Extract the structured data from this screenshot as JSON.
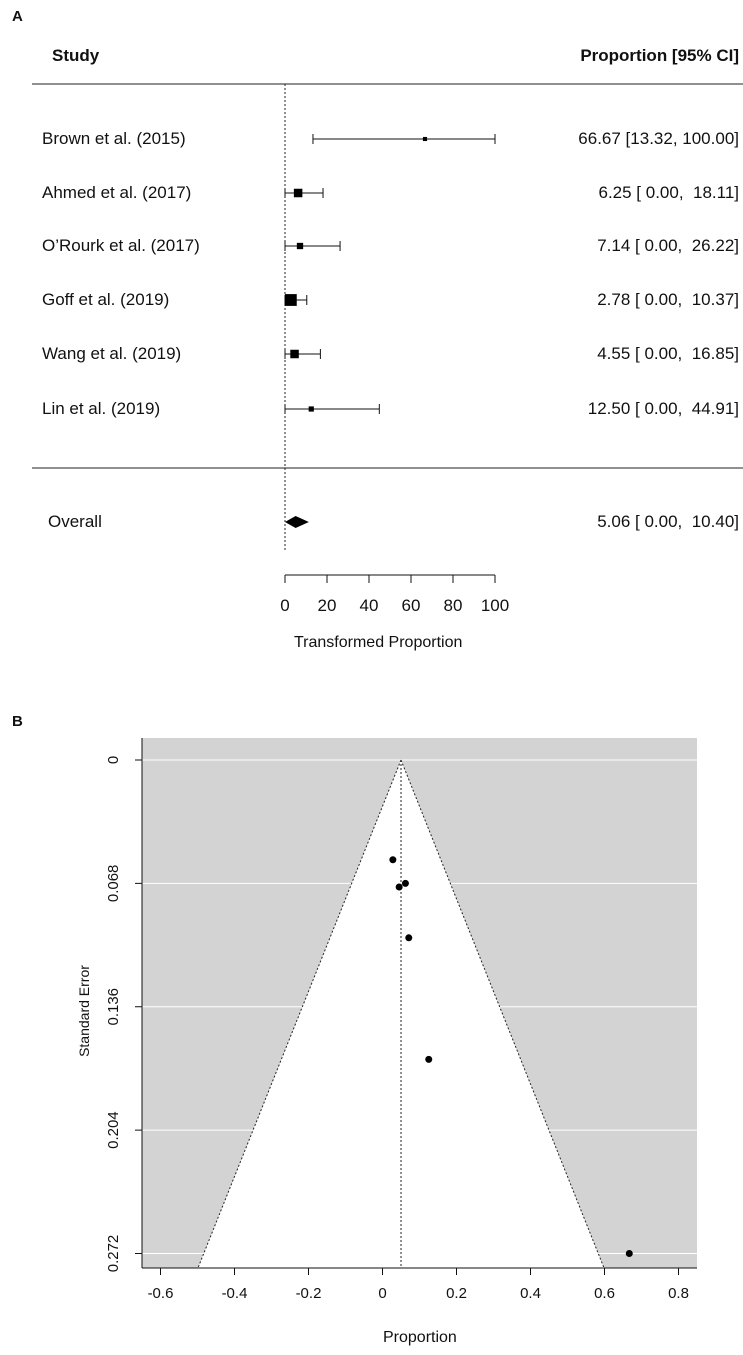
{
  "panel_labels": {
    "a": "A",
    "b": "B"
  },
  "forest": {
    "header_study": "Study",
    "header_ci": "Proportion [95% CI]",
    "overall_label": "Overall",
    "overall_ci": "5.06 [ 0.00,  10.40]",
    "xlabel": "Transformed Proportion"
  },
  "funnel": {
    "xlabel": "Proportion",
    "ylabel": "Standard Error"
  },
  "chart_data": [
    {
      "type": "forest",
      "xlim": [
        0,
        100
      ],
      "xticks": [
        0,
        20,
        40,
        60,
        80,
        100
      ],
      "reference_line": 0,
      "studies": [
        {
          "label": "Brown et al. (2015)",
          "estimate": 66.67,
          "lower": 13.32,
          "upper": 100.0,
          "ci_text": "66.67 [13.32, 100.00]"
        },
        {
          "label": "Ahmed et al. (2017)",
          "estimate": 6.25,
          "lower": 0.0,
          "upper": 18.11,
          "ci_text": "6.25 [ 0.00,  18.11]"
        },
        {
          "label": "O’Rourk et al. (2017)",
          "estimate": 7.14,
          "lower": 0.0,
          "upper": 26.22,
          "ci_text": "7.14 [ 0.00,  26.22]"
        },
        {
          "label": "Goff et al. (2019)",
          "estimate": 2.78,
          "lower": 0.0,
          "upper": 10.37,
          "ci_text": "2.78 [ 0.00,  10.37]"
        },
        {
          "label": "Wang et al. (2019)",
          "estimate": 4.55,
          "lower": 0.0,
          "upper": 16.85,
          "ci_text": "4.55 [ 0.00,  16.85]"
        },
        {
          "label": "Lin et al. (2019)",
          "estimate": 12.5,
          "lower": 0.0,
          "upper": 44.91,
          "ci_text": "12.50 [ 0.00,  44.91]"
        }
      ],
      "weights": [
        1,
        5,
        3,
        8,
        5,
        2
      ],
      "overall": {
        "estimate": 5.06,
        "lower": 0.0,
        "upper": 10.4
      }
    },
    {
      "type": "scatter",
      "subtype": "funnel",
      "xlim": [
        -0.65,
        0.85
      ],
      "ylim": [
        0.28,
        0
      ],
      "xticks": [
        -0.6,
        -0.4,
        -0.2,
        0,
        0.2,
        0.4,
        0.6,
        0.8
      ],
      "xtick_labels": [
        "-0.6",
        "-0.4",
        "-0.2",
        "0",
        "0.2",
        "0.4",
        "0.6",
        "0.8"
      ],
      "yticks": [
        0,
        0.068,
        0.136,
        0.204,
        0.272
      ],
      "ytick_labels": [
        "0",
        "0.068",
        "0.136",
        "0.204",
        "0.272"
      ],
      "center": 0.05,
      "grid": true,
      "background": "#d3d3d3",
      "points": [
        {
          "x": 0.028,
          "y": 0.055
        },
        {
          "x": 0.045,
          "y": 0.07
        },
        {
          "x": 0.062,
          "y": 0.068
        },
        {
          "x": 0.071,
          "y": 0.098
        },
        {
          "x": 0.125,
          "y": 0.165
        },
        {
          "x": 0.667,
          "y": 0.272
        }
      ]
    }
  ]
}
